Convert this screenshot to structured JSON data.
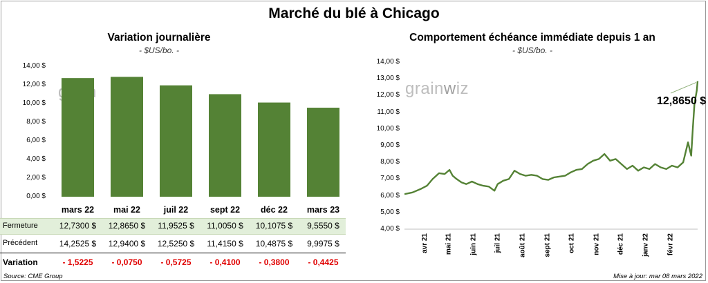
{
  "page": {
    "title": "Marché du blé à Chicago",
    "source": "Source: CME Group",
    "updated": "Mise à jour: mar 08 mars 2022",
    "watermark_left": "grain",
    "watermark_right": "iz"
  },
  "left_chart": {
    "title": "Variation journalière",
    "unit": "- $US/bo. -",
    "y_ticks": [
      "14,00 $",
      "12,00 $",
      "10,00 $",
      "8,00 $",
      "6,00 $",
      "4,00 $",
      "2,00 $",
      "0,00 $"
    ],
    "bar_color": "#548235"
  },
  "table": {
    "row_labels": {
      "close": "Fermeture",
      "previous": "Précédent",
      "variation": "Variation"
    },
    "close_values": [
      "12,7300  $",
      "12,8650  $",
      "11,9525  $",
      "11,0050  $",
      "10,1075  $",
      "9,5550  $"
    ],
    "previous_values": [
      "14,2525  $",
      "12,9400  $",
      "12,5250  $",
      "11,4150  $",
      "10,4875  $",
      "9,9975  $"
    ],
    "variation_values": [
      "- 1,5225",
      "- 0,0750",
      "- 0,5725",
      "- 0,4100",
      "- 0,3800",
      "- 0,4425"
    ]
  },
  "right_chart": {
    "title": "Comportement  échéance immédiate depuis 1 an",
    "unit": "- $US/bo. -",
    "y_ticks": [
      "14,00 $",
      "13,00 $",
      "12,00 $",
      "11,00 $",
      "10,00 $",
      "9,00 $",
      "8,00 $",
      "7,00 $",
      "6,00 $",
      "5,00 $",
      "4,00 $"
    ],
    "x_ticks": [
      "avr 21",
      "mai 21",
      "juin 21",
      "juil 21",
      "août 21",
      "sept 21",
      "oct 21",
      "nov 21",
      "déc 21",
      "janv 22",
      "févr 22"
    ],
    "last_label": "12,8650 $",
    "line_color": "#548235"
  },
  "chart_data": [
    {
      "type": "bar",
      "title": "Variation journalière",
      "categories": [
        "mars 22",
        "mai 22",
        "juil 22",
        "sept 22",
        "déc 22",
        "mars 23"
      ],
      "values": [
        12.73,
        12.865,
        11.9525,
        11.005,
        10.1075,
        9.555
      ],
      "ylabel": "- $US/bo. -",
      "ylim": [
        0,
        14
      ]
    },
    {
      "type": "line",
      "title": "Comportement  échéance immédiate depuis 1 an",
      "ylabel": "- $US/bo. -",
      "ylim": [
        4,
        14
      ],
      "x": [
        "2021-03-08",
        "2021-03-18",
        "2021-03-28",
        "2021-04-05",
        "2021-04-12",
        "2021-04-20",
        "2021-04-27",
        "2021-05-03",
        "2021-05-07",
        "2021-05-12",
        "2021-05-18",
        "2021-05-24",
        "2021-05-31",
        "2021-06-07",
        "2021-06-14",
        "2021-06-21",
        "2021-06-28",
        "2021-07-02",
        "2021-07-09",
        "2021-07-16",
        "2021-07-23",
        "2021-07-30",
        "2021-08-06",
        "2021-08-13",
        "2021-08-20",
        "2021-08-27",
        "2021-09-03",
        "2021-09-10",
        "2021-09-17",
        "2021-09-24",
        "2021-10-01",
        "2021-10-08",
        "2021-10-15",
        "2021-10-22",
        "2021-10-29",
        "2021-11-05",
        "2021-11-12",
        "2021-11-19",
        "2021-11-26",
        "2021-12-03",
        "2021-12-10",
        "2021-12-17",
        "2021-12-24",
        "2021-12-31",
        "2022-01-07",
        "2022-01-14",
        "2022-01-21",
        "2022-01-28",
        "2022-02-04",
        "2022-02-11",
        "2022-02-18",
        "2022-02-24",
        "2022-02-28",
        "2022-03-02",
        "2022-03-04",
        "2022-03-07",
        "2022-03-08"
      ],
      "series": [
        {
          "values": [
            6.1,
            6.2,
            6.4,
            6.6,
            7.0,
            7.35,
            7.3,
            7.55,
            7.2,
            7.0,
            6.8,
            6.7,
            6.85,
            6.7,
            6.6,
            6.55,
            6.3,
            6.7,
            6.9,
            7.0,
            7.5,
            7.3,
            7.2,
            7.25,
            7.2,
            7.0,
            6.95,
            7.1,
            7.15,
            7.2,
            7.4,
            7.55,
            7.6,
            7.9,
            8.1,
            8.2,
            8.5,
            8.1,
            8.2,
            7.9,
            7.6,
            7.8,
            7.5,
            7.7,
            7.6,
            7.9,
            7.7,
            7.6,
            7.8,
            7.7,
            8.0,
            9.2,
            8.4,
            10.0,
            11.5,
            12.3,
            12.865
          ]
        }
      ]
    }
  ]
}
